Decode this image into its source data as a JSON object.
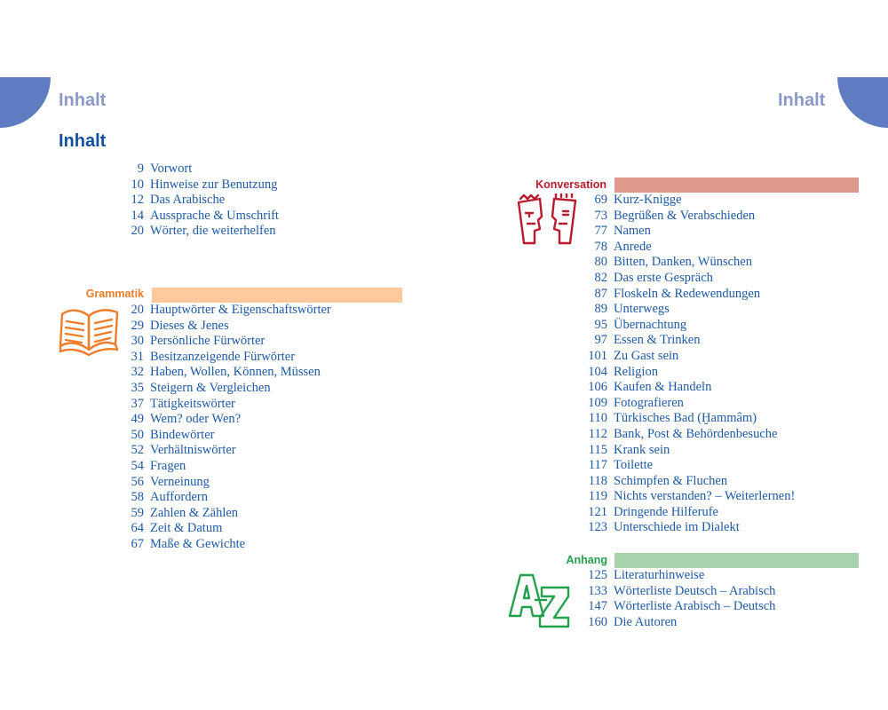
{
  "header": {
    "left_running_head": "Inhalt",
    "right_running_head": "Inhalt",
    "page_title": "Inhalt"
  },
  "intro": {
    "entries": [
      {
        "page": "9",
        "title": "Vorwort"
      },
      {
        "page": "10",
        "title": "Hinweise zur Benutzung"
      },
      {
        "page": "12",
        "title": "Das Arabische"
      },
      {
        "page": "14",
        "title": "Aussprache & Umschrift"
      },
      {
        "page": "20",
        "title": "Wörter, die weiterhelfen"
      }
    ]
  },
  "grammatik": {
    "label": "Grammatik",
    "color": "#ed7d2b",
    "bar_color": "#fec99c",
    "icon": "open-book-icon",
    "entries": [
      {
        "page": "20",
        "title": "Hauptwörter & Eigenschaftswörter"
      },
      {
        "page": "29",
        "title": "Dieses & Jenes"
      },
      {
        "page": "30",
        "title": "Persönliche Fürwörter"
      },
      {
        "page": "31",
        "title": "Besitzanzeigende Fürwörter"
      },
      {
        "page": "32",
        "title": "Haben, Wollen, Können, Müssen"
      },
      {
        "page": "35",
        "title": "Steigern & Vergleichen"
      },
      {
        "page": "37",
        "title": "Tätigkeitswörter"
      },
      {
        "page": "49",
        "title": "Wem? oder Wen?"
      },
      {
        "page": "50",
        "title": "Bindewörter"
      },
      {
        "page": "52",
        "title": "Verhältniswörter"
      },
      {
        "page": "54",
        "title": "Fragen"
      },
      {
        "page": "56",
        "title": "Verneinung"
      },
      {
        "page": "58",
        "title": "Auffordern"
      },
      {
        "page": "59",
        "title": "Zahlen & Zählen"
      },
      {
        "page": "64",
        "title": "Zeit & Datum"
      },
      {
        "page": "67",
        "title": "Maße & Gewichte"
      }
    ]
  },
  "konversation": {
    "label": "Konversation",
    "color": "#b81b2e",
    "bar_color": "#dd9a8b",
    "icon": "two-faces-icon",
    "entries": [
      {
        "page": "69",
        "title": "Kurz-Knigge"
      },
      {
        "page": "73",
        "title": "Begrüßen & Verabschieden"
      },
      {
        "page": "77",
        "title": "Namen"
      },
      {
        "page": "78",
        "title": "Anrede"
      },
      {
        "page": "80",
        "title": "Bitten, Danken, Wünschen"
      },
      {
        "page": "82",
        "title": "Das erste Gespräch"
      },
      {
        "page": "87",
        "title": "Floskeln & Redewendungen"
      },
      {
        "page": "89",
        "title": "Unterwegs"
      },
      {
        "page": "95",
        "title": "Übernachtung"
      },
      {
        "page": "97",
        "title": "Essen & Trinken"
      },
      {
        "page": "101",
        "title": "Zu Gast sein"
      },
      {
        "page": "104",
        "title": "Religion"
      },
      {
        "page": "106",
        "title": "Kaufen & Handeln"
      },
      {
        "page": "109",
        "title": "Fotografieren"
      },
      {
        "page": "110",
        "title": "Türkisches Bad (Ḫammâm)"
      },
      {
        "page": "112",
        "title": "Bank, Post & Behördenbesuche"
      },
      {
        "page": "115",
        "title": "Krank sein"
      },
      {
        "page": "117",
        "title": "Toilette"
      },
      {
        "page": "118",
        "title": "Schimpfen & Fluchen"
      },
      {
        "page": "119",
        "title": "Nichts verstanden? – Weiterlernen!"
      },
      {
        "page": "121",
        "title": "Dringende Hilferufe"
      },
      {
        "page": "123",
        "title": "Unterschiede im Dialekt"
      }
    ]
  },
  "anhang": {
    "label": "Anhang",
    "color": "#22a04b",
    "bar_color": "#a7d4ac",
    "icon": "a-z-icon",
    "entries": [
      {
        "page": "125",
        "title": "Literaturhinweise"
      },
      {
        "page": "133",
        "title": "Wörterliste Deutsch – Arabisch"
      },
      {
        "page": "147",
        "title": "Wörterliste Arabisch – Deutsch"
      },
      {
        "page": "160",
        "title": "Die Autoren"
      }
    ]
  },
  "colors": {
    "corner_tab": "#5f7cc2",
    "running_head": "#8c98c8",
    "title": "#124f9c",
    "entry_text": "#1e5aa5"
  }
}
